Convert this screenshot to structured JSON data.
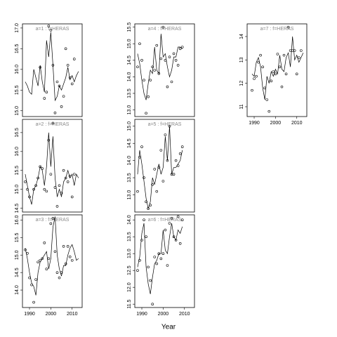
{
  "xlabel": "Year",
  "chart_data": [
    {
      "type": "line",
      "title": "a=1 : f=HERAS",
      "xlim": [
        1986.7,
        2014.7
      ],
      "ylim": [
        14.86,
        17.1
      ],
      "yticks": [
        15.0,
        15.5,
        16.0,
        16.5,
        17.0
      ],
      "yticks_labels": [
        "15.0",
        "15.5",
        "16.0",
        "16.5",
        "17.0"
      ],
      "x": [
        1988,
        1989,
        1990,
        1991,
        1992,
        1993,
        1994,
        1995,
        1996,
        1997,
        1998,
        1999,
        2000,
        2001,
        2002,
        2003,
        2004,
        2005,
        2006,
        2007,
        2008,
        2009,
        2010,
        2011,
        2012,
        2013
      ],
      "series": [
        {
          "style": "points",
          "color": "#000000",
          "values": [
            null,
            null,
            null,
            null,
            null,
            null,
            null,
            16.05,
            null,
            15.3,
            15.45,
            17.05,
            16.95,
            16.1,
            14.95,
            15.7,
            15.6,
            15.1,
            15.35,
            16.5,
            16.1,
            15.8,
            15.65,
            16.25,
            null,
            null
          ]
        },
        {
          "style": "line",
          "color": "#000000",
          "values": [
            15.7,
            15.6,
            15.45,
            15.4,
            16.0,
            15.8,
            15.6,
            16.1,
            15.7,
            15.45,
            16.7,
            16.3,
            16.9,
            16.1,
            15.25,
            15.35,
            15.6,
            15.5,
            15.65,
            15.8,
            16.05,
            15.75,
            15.85,
            15.7,
            15.85,
            15.95
          ]
        }
      ]
    },
    {
      "type": "line",
      "title": "a=2 : f=HERAS",
      "xlim": [
        1986.7,
        2014.7
      ],
      "ylim": [
        14.4,
        16.85
      ],
      "yticks": [
        14.5,
        15.0,
        15.5,
        16.0,
        16.5
      ],
      "yticks_labels": [
        "14.5",
        "15.0",
        "15.5",
        "16.0",
        "16.5"
      ],
      "x": [
        1988,
        1989,
        1990,
        1991,
        1992,
        1993,
        1994,
        1995,
        1996,
        1997,
        1998,
        1999,
        2000,
        2001,
        2002,
        2003,
        2004,
        2005,
        2006,
        2007,
        2008,
        2009,
        2010,
        2011,
        2012,
        2013
      ],
      "series": [
        {
          "style": "points",
          "color": "#000000",
          "values": [
            15.2,
            15.0,
            14.8,
            null,
            15.0,
            15.1,
            15.3,
            15.6,
            15.55,
            15.0,
            14.95,
            16.3,
            15.4,
            16.75,
            15.05,
            14.55,
            15.1,
            14.9,
            15.5,
            15.3,
            15.2,
            15.35,
            14.8,
            15.4,
            null,
            null
          ]
        },
        {
          "style": "line",
          "color": "#000000",
          "values": [
            15.4,
            15.1,
            14.8,
            14.6,
            15.0,
            15.1,
            15.3,
            15.6,
            15.5,
            15.1,
            15.6,
            16.5,
            15.6,
            16.4,
            15.3,
            14.8,
            15.0,
            14.8,
            15.2,
            15.3,
            15.5,
            15.3,
            15.4,
            15.1,
            15.4,
            15.3
          ]
        }
      ]
    },
    {
      "type": "line",
      "title": "a=3 : f=HERAS",
      "xlim": [
        1986.7,
        2014.7
      ],
      "ylim": [
        13.5,
        16.15
      ],
      "yticks": [
        14.0,
        14.5,
        15.0,
        15.5,
        16.0
      ],
      "yticks_labels": [
        "14.0",
        "14.5",
        "15.0",
        "15.5",
        "16.0"
      ],
      "xticks": [
        1990,
        2000,
        2010
      ],
      "x": [
        1988,
        1989,
        1990,
        1991,
        1992,
        1993,
        1994,
        1995,
        1996,
        1997,
        1998,
        1999,
        2000,
        2001,
        2002,
        2003,
        2004,
        2005,
        2006,
        2007,
        2008,
        2009,
        2010,
        2011,
        2012,
        2013
      ],
      "series": [
        {
          "style": "points",
          "color": "#000000",
          "values": [
            15.15,
            15.05,
            14.35,
            14.15,
            13.65,
            14.3,
            14.8,
            14.85,
            14.9,
            15.35,
            14.6,
            14.9,
            15.9,
            16.05,
            15.1,
            14.5,
            14.35,
            14.5,
            15.25,
            14.75,
            15.25,
            14.95,
            14.85,
            null,
            null,
            null
          ]
        },
        {
          "style": "line",
          "color": "#000000",
          "values": [
            15.2,
            14.9,
            14.5,
            14.2,
            14.1,
            13.85,
            14.5,
            14.8,
            14.9,
            15.0,
            15.1,
            14.6,
            14.9,
            15.8,
            16.1,
            15.0,
            14.6,
            14.4,
            14.7,
            14.7,
            15.0,
            15.2,
            15.3,
            15.1,
            14.85,
            14.9
          ]
        }
      ]
    },
    {
      "type": "line",
      "title": "a=4 : f=HERAS",
      "xlim": [
        1986.7,
        2014.7
      ],
      "ylim": [
        12.8,
        15.6
      ],
      "yticks": [
        13.0,
        13.5,
        14.0,
        14.5,
        15.0,
        15.5
      ],
      "yticks_labels": [
        "13.0",
        "13.5",
        "14.0",
        "14.5",
        "15.0",
        "15.5"
      ],
      "x": [
        1988,
        1989,
        1990,
        1991,
        1992,
        1993,
        1994,
        1995,
        1996,
        1997,
        1998,
        1999,
        2000,
        2001,
        2002,
        2003,
        2004,
        2005,
        2006,
        2007,
        2008,
        2009,
        2010,
        2011,
        2012,
        2013
      ],
      "series": [
        {
          "style": "points",
          "color": "#000000",
          "values": [
            14.3,
            15.0,
            14.5,
            13.9,
            12.9,
            13.4,
            13.9,
            14.3,
            14.2,
            14.95,
            14.1,
            14.55,
            15.5,
            14.5,
            13.7,
            14.6,
            13.85,
            14.7,
            14.5,
            14.35,
            14.85,
            14.9,
            null,
            null,
            null,
            null
          ]
        },
        {
          "style": "line",
          "color": "#000000",
          "values": [
            14.7,
            14.4,
            13.9,
            13.5,
            13.3,
            13.8,
            14.2,
            14.1,
            14.9,
            14.2,
            14.1,
            15.3,
            14.6,
            14.7,
            14.3,
            14.0,
            14.2,
            14.6,
            14.6,
            14.9,
            14.9,
            14.85,
            null,
            null,
            null,
            null
          ]
        }
      ]
    },
    {
      "type": "line",
      "title": "a=5 : f=HERAS",
      "xlim": [
        1986.7,
        2014.7
      ],
      "ylim": [
        12.5,
        15.2
      ],
      "yticks": [
        13.0,
        13.5,
        14.0,
        14.5,
        15.0
      ],
      "yticks_labels": [
        "13.0",
        "13.5",
        "14.0",
        "14.5",
        "15.0"
      ],
      "x": [
        1988,
        1989,
        1990,
        1991,
        1992,
        1993,
        1994,
        1995,
        1996,
        1997,
        1998,
        1999,
        2000,
        2001,
        2002,
        2003,
        2004,
        2005,
        2006,
        2007,
        2008,
        2009,
        2010,
        2011,
        2012,
        2013
      ],
      "series": [
        {
          "style": "points",
          "color": "#000000",
          "values": [
            13.1,
            14.1,
            14.4,
            13.5,
            12.8,
            12.6,
            12.7,
            13.3,
            13.75,
            13.1,
            13.8,
            14.3,
            13.4,
            14.75,
            14.0,
            15.0,
            13.6,
            13.6,
            14.0,
            13.85,
            14.2,
            14.4,
            null,
            null,
            null,
            null
          ]
        },
        {
          "style": "line",
          "color": "#000000",
          "values": [
            13.6,
            14.3,
            13.9,
            13.4,
            12.9,
            12.6,
            12.8,
            13.5,
            13.3,
            13.6,
            13.9,
            13.6,
            13.8,
            14.7,
            14.0,
            15.0,
            13.6,
            13.8,
            13.8,
            13.9,
            14.0,
            14.3,
            null,
            null,
            null,
            null
          ]
        }
      ]
    },
    {
      "type": "line",
      "title": "a=6 : f=HERAS",
      "xlim": [
        1986.7,
        2014.7
      ],
      "ylim": [
        11.4,
        14.15
      ],
      "yticks": [
        11.5,
        12.0,
        12.5,
        13.0,
        13.5,
        14.0
      ],
      "yticks_labels": [
        "11.5",
        "12.0",
        "12.5",
        "13.0",
        "13.5",
        "14.0"
      ],
      "xticks": [
        1990,
        2000,
        2010
      ],
      "x": [
        1988,
        1989,
        1990,
        1991,
        1992,
        1993,
        1994,
        1995,
        1996,
        1997,
        1998,
        1999,
        2000,
        2001,
        2002,
        2003,
        2004,
        2005,
        2006,
        2007,
        2008,
        2009,
        2010,
        2011,
        2012,
        2013
      ],
      "series": [
        {
          "style": "points",
          "color": "#000000",
          "values": [
            12.5,
            12.8,
            13.4,
            14.0,
            13.5,
            12.6,
            12.2,
            11.5,
            12.9,
            12.7,
            13.0,
            12.85,
            13.0,
            13.7,
            12.65,
            13.9,
            14.05,
            13.5,
            13.4,
            14.1,
            13.3,
            14.0,
            null,
            null,
            null,
            null
          ]
        },
        {
          "style": "line",
          "color": "#000000",
          "values": [
            12.6,
            12.9,
            13.6,
            13.9,
            12.6,
            12.1,
            11.8,
            12.3,
            12.7,
            12.8,
            13.0,
            13.0,
            13.7,
            13.1,
            13.0,
            13.5,
            13.9,
            13.5,
            13.4,
            13.7,
            13.6,
            13.8,
            null,
            null,
            null,
            null
          ]
        }
      ]
    },
    {
      "type": "line",
      "title": "a=7 : f=HERAS",
      "xlim": [
        1986.7,
        2014.7
      ],
      "ylim": [
        10.58,
        14.54
      ],
      "yticks": [
        11,
        12,
        13,
        14
      ],
      "xticks": [
        1990,
        2000,
        2010
      ],
      "x": [
        1988,
        1989,
        1990,
        1991,
        1992,
        1993,
        1994,
        1995,
        1996,
        1997,
        1998,
        1999,
        2000,
        2001,
        2002,
        2003,
        2004,
        2005,
        2006,
        2007,
        2008,
        2009,
        2010,
        2011,
        2012,
        2013
      ],
      "series": [
        {
          "style": "points",
          "color": "#000000",
          "values": [
            null,
            11.7,
            12.2,
            12.3,
            12.9,
            13.2,
            12.7,
            11.8,
            11.3,
            10.8,
            12.1,
            12.5,
            12.4,
            13.25,
            12.7,
            11.85,
            13.2,
            12.4,
            14.4,
            13.4,
            13.4,
            13.4,
            12.4,
            13.1,
            13.4,
            null
          ]
        },
        {
          "style": "line",
          "color": "#000000",
          "values": [
            null,
            12.4,
            12.3,
            12.9,
            13.1,
            12.7,
            11.8,
            11.3,
            12.3,
            12.0,
            12.5,
            12.3,
            12.6,
            12.4,
            13.2,
            12.6,
            12.5,
            13.1,
            13.3,
            12.7,
            14.0,
            13.0,
            13.2,
            12.9,
            13.1,
            13.3
          ]
        }
      ]
    }
  ]
}
